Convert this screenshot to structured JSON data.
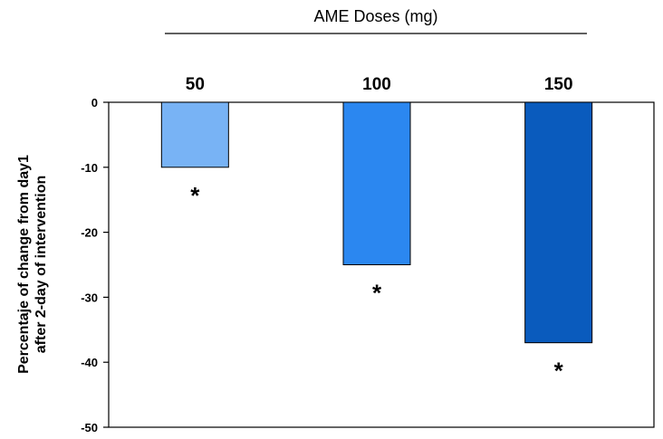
{
  "chart_data": {
    "type": "bar",
    "title": "AME  Doses (mg)",
    "xlabel": "",
    "ylabel": [
      "Percentaje of change from day1",
      "after 2-day of intervention"
    ],
    "categories": [
      "50",
      "100",
      "150"
    ],
    "values": [
      -10,
      -25,
      -37
    ],
    "annotations": [
      "*",
      "*",
      "*"
    ],
    "colors": [
      "#78b3f5",
      "#2b87f0",
      "#0a5bbd"
    ],
    "ylim": [
      -50,
      0
    ],
    "yticks": [
      0,
      -10,
      -20,
      -30,
      -40,
      -50
    ],
    "ytick_labels": [
      "0",
      "-10",
      "-20",
      "-30",
      "-40",
      "-50"
    ],
    "grid": false,
    "legend": "none"
  }
}
